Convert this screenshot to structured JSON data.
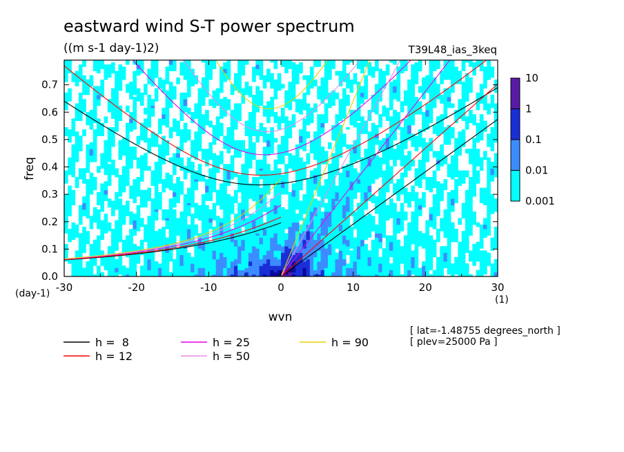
{
  "chart_data": {
    "type": "heatmap",
    "title": "eastward wind S-T power spectrum",
    "units": "((m s-1 day-1)2)",
    "experiment": "T39L48_ias_3keq",
    "xlabel": "wvn",
    "ylabel": "freq",
    "x_unit_label": "(1)",
    "y_unit_label": "(day-1)",
    "xlim": [
      -30,
      30
    ],
    "ylim": [
      0,
      0.79
    ],
    "xticks": [
      "-30",
      "-20",
      "-10",
      "0",
      "10",
      "20",
      "30"
    ],
    "xtick_values": [
      -30,
      -20,
      -10,
      0,
      10,
      20,
      30
    ],
    "yticks": [
      "0.0",
      "0.1",
      "0.2",
      "0.3",
      "0.4",
      "0.5",
      "0.6",
      "0.7"
    ],
    "ytick_values": [
      0,
      0.1,
      0.2,
      0.3,
      0.4,
      0.5,
      0.6,
      0.7
    ],
    "colorbar": {
      "scale": "log",
      "levels": [
        "0.001",
        "0.01",
        "0.1",
        "1",
        "10"
      ],
      "colors": [
        "#00ffff",
        "#3c8cff",
        "#1a2ed8",
        "#0a0a96",
        "#5a1aa8"
      ]
    },
    "dispersion_curves": [
      {
        "label": "h =  8",
        "h": 8,
        "color": "#000000"
      },
      {
        "label": "h = 12",
        "h": 12,
        "color": "#ff0000"
      },
      {
        "label": "h = 25",
        "h": 25,
        "color": "#e600e6"
      },
      {
        "label": "h = 50",
        "h": 50,
        "color": "#e88ce8"
      },
      {
        "label": "h = 90",
        "h": 90,
        "color": "#e6d200"
      }
    ],
    "annotations": [
      "[ lat=-1.48755 degrees_north ]",
      "[ plev=25000 Pa ]"
    ]
  }
}
